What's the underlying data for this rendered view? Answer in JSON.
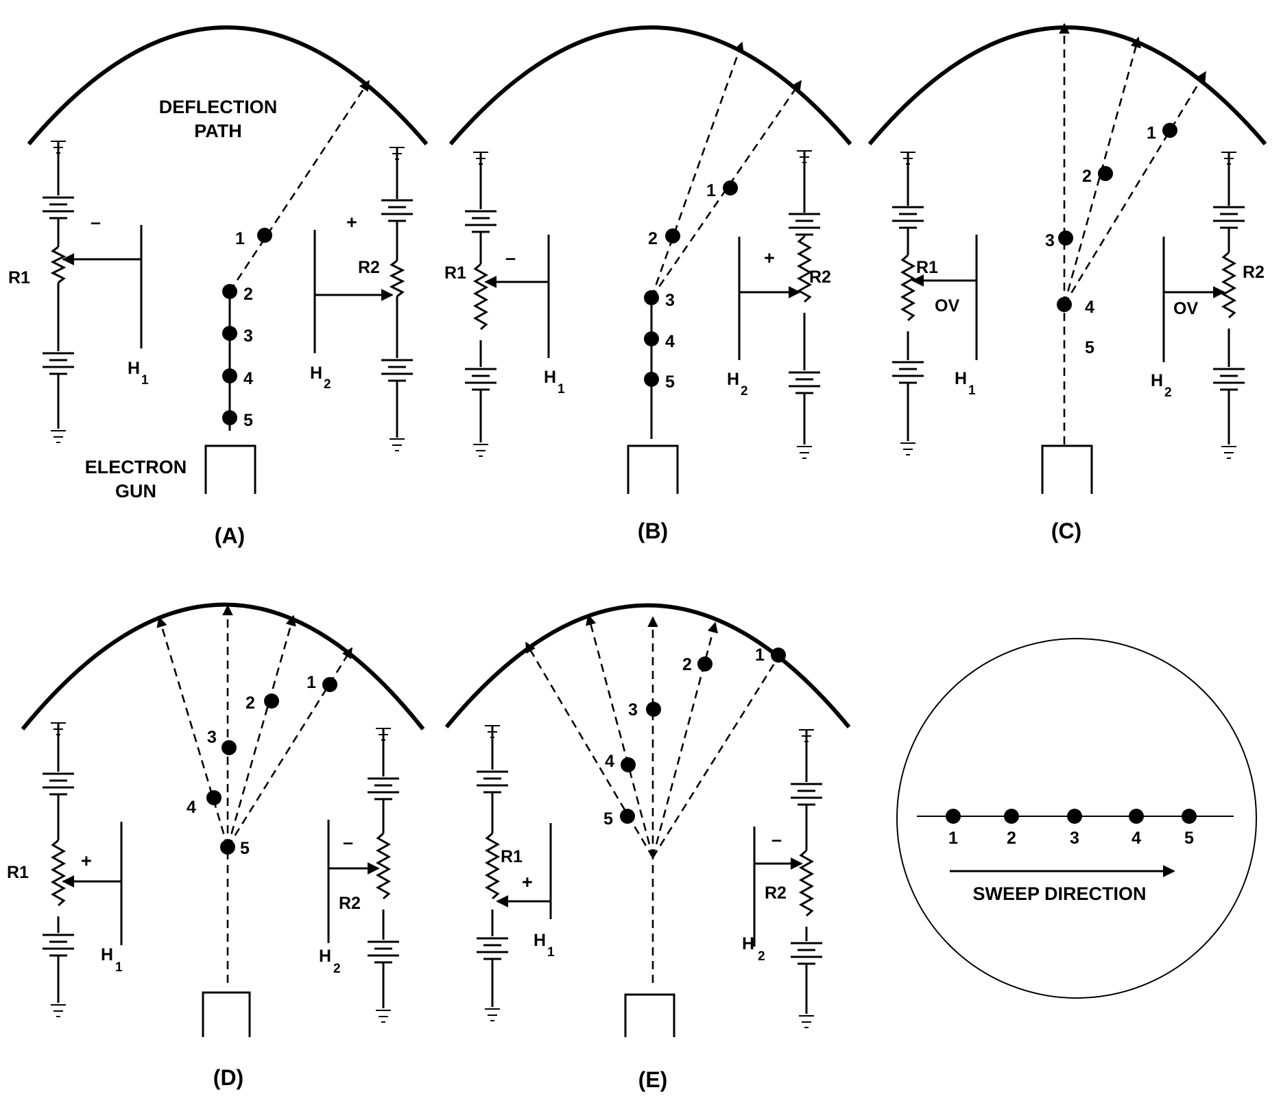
{
  "annotations": {
    "deflection_path": [
      "DEFLECTION",
      "PATH"
    ],
    "electron_gun": [
      "ELECTRON",
      "GUN"
    ]
  },
  "labels": {
    "r1": "R1",
    "r2": "R2",
    "h": "H",
    "h_sub1": "1",
    "h_sub2": "2",
    "plus": "+",
    "minus": "–",
    "ov": "OV",
    "num1": "1",
    "num2": "2",
    "num3": "3",
    "num4": "4",
    "num5": "5"
  },
  "panels": {
    "a": {
      "caption": "(A)"
    },
    "b": {
      "caption": "(B)"
    },
    "c": {
      "caption": "(C)"
    },
    "d": {
      "caption": "(D)"
    },
    "e": {
      "caption": "(E)"
    }
  },
  "screen_view": {
    "dots": [
      "1",
      "2",
      "3",
      "4",
      "5"
    ],
    "sweep_label": "SWEEP DIRECTION"
  }
}
